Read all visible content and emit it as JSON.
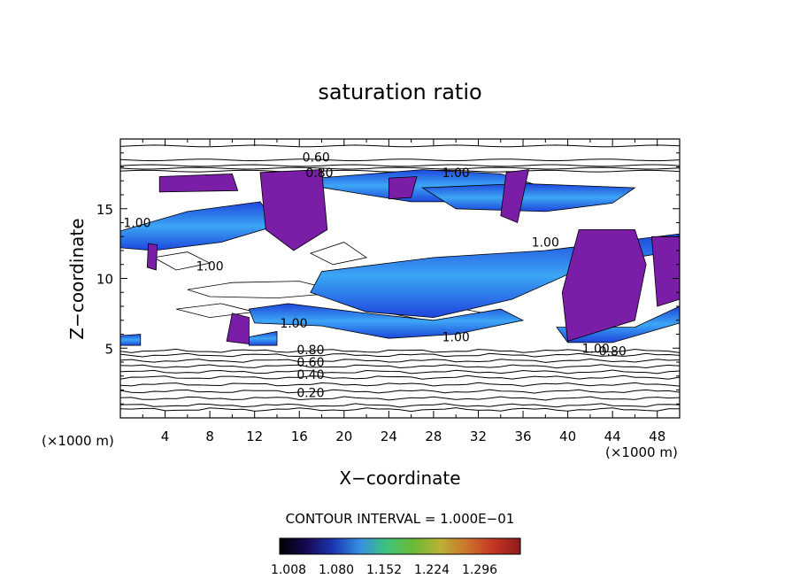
{
  "chart_data": {
    "type": "heatmap",
    "title": "saturation ratio",
    "xlabel": "X−coordinate",
    "ylabel": "Z−coordinate",
    "x_unit": "(×1000 m)",
    "x_unit_right": "(×1000 m)",
    "xlim": [
      0,
      50
    ],
    "ylim": [
      0,
      20
    ],
    "x_ticks": [
      4,
      8,
      12,
      16,
      20,
      24,
      28,
      32,
      36,
      40,
      44,
      48
    ],
    "y_ticks": [
      5,
      10,
      15
    ],
    "contour_interval_text": "CONTOUR INTERVAL = 1.000E−01",
    "colorbar": {
      "tick_labels": [
        "1.008",
        "1.080",
        "1.152",
        "1.224",
        "1.296"
      ],
      "colors": [
        "#000000",
        "#1a0a5c",
        "#1e3cc8",
        "#3ca0ff",
        "#46dc8c",
        "#78d23c",
        "#d2c83c",
        "#e68232",
        "#dc3c28",
        "#a01e1e"
      ]
    },
    "contour_labels": [
      {
        "text": "0.60",
        "x": 17.5,
        "z": 18.7
      },
      {
        "text": "0.80",
        "x": 17.8,
        "z": 17.6
      },
      {
        "text": "1.00",
        "x": 30.0,
        "z": 17.6
      },
      {
        "text": "1.00",
        "x": 1.5,
        "z": 14.0
      },
      {
        "text": "1.00",
        "x": 38.0,
        "z": 12.6
      },
      {
        "text": "1.00",
        "x": 8.0,
        "z": 10.9
      },
      {
        "text": "1.00",
        "x": 15.5,
        "z": 6.8
      },
      {
        "text": "1.00",
        "x": 30.0,
        "z": 5.8
      },
      {
        "text": "1.00",
        "x": 42.5,
        "z": 5.0
      },
      {
        "text": "0.80",
        "x": 17.0,
        "z": 4.9
      },
      {
        "text": "0.60",
        "x": 17.0,
        "z": 4.0
      },
      {
        "text": "0.40",
        "x": 17.0,
        "z": 3.1
      },
      {
        "text": "0.20",
        "x": 17.0,
        "z": 1.8
      },
      {
        "text": "0.80",
        "x": 44.0,
        "z": 4.8
      }
    ],
    "supersaturated_regions_purple": [
      [
        [
          3.5,
          17.3
        ],
        [
          10.0,
          17.5
        ],
        [
          10.5,
          16.3
        ],
        [
          3.5,
          16.2
        ]
      ],
      [
        [
          12.5,
          17.6
        ],
        [
          18.0,
          17.8
        ],
        [
          18.5,
          13.5
        ],
        [
          15.5,
          12.0
        ],
        [
          13.0,
          13.5
        ]
      ],
      [
        [
          24.0,
          17.2
        ],
        [
          26.5,
          17.3
        ],
        [
          26.0,
          15.8
        ],
        [
          24.0,
          15.7
        ]
      ],
      [
        [
          34.5,
          17.6
        ],
        [
          36.5,
          17.8
        ],
        [
          35.5,
          14.0
        ],
        [
          34.0,
          14.5
        ]
      ],
      [
        [
          41.0,
          13.5
        ],
        [
          46.0,
          13.5
        ],
        [
          47.0,
          11.0
        ],
        [
          46.0,
          7.0
        ],
        [
          40.0,
          5.5
        ],
        [
          39.5,
          9.0
        ]
      ],
      [
        [
          47.5,
          13.0
        ],
        [
          50.0,
          13.0
        ],
        [
          50.0,
          8.5
        ],
        [
          48.0,
          8.0
        ]
      ],
      [
        [
          10.0,
          7.5
        ],
        [
          11.5,
          7.2
        ],
        [
          11.5,
          5.3
        ],
        [
          9.5,
          5.5
        ]
      ],
      [
        [
          2.5,
          12.5
        ],
        [
          3.3,
          12.4
        ],
        [
          3.2,
          10.6
        ],
        [
          2.4,
          10.8
        ]
      ]
    ],
    "supersaturated_bands_blue": [
      [
        [
          0,
          13.4
        ],
        [
          6.0,
          14.8
        ],
        [
          12.5,
          15.5
        ],
        [
          14.0,
          13.8
        ],
        [
          9.0,
          12.6
        ],
        [
          3.0,
          12.0
        ],
        [
          0,
          12.2
        ]
      ],
      [
        [
          14.5,
          17.0
        ],
        [
          27.0,
          17.8
        ],
        [
          34.0,
          17.5
        ],
        [
          38.0,
          16.5
        ],
        [
          33.0,
          15.5
        ],
        [
          26.0,
          15.5
        ],
        [
          22.0,
          16.0
        ]
      ],
      [
        [
          18.0,
          10.5
        ],
        [
          28.0,
          11.5
        ],
        [
          38.0,
          12.0
        ],
        [
          50.0,
          13.2
        ],
        [
          50.0,
          12.0
        ],
        [
          42.0,
          11.0
        ],
        [
          35.0,
          8.5
        ],
        [
          28.0,
          7.2
        ],
        [
          22.0,
          7.6
        ],
        [
          17.0,
          9.0
        ]
      ],
      [
        [
          15.0,
          8.2
        ],
        [
          22.0,
          7.5
        ],
        [
          28.0,
          7.0
        ],
        [
          34.0,
          7.8
        ],
        [
          36.0,
          7.0
        ],
        [
          30.0,
          6.0
        ],
        [
          24.0,
          5.7
        ],
        [
          18.0,
          6.6
        ],
        [
          12.0,
          6.8
        ],
        [
          11.5,
          7.8
        ]
      ],
      [
        [
          27.0,
          16.5
        ],
        [
          36.0,
          16.8
        ],
        [
          46.0,
          16.5
        ],
        [
          44.0,
          15.4
        ],
        [
          38.0,
          14.8
        ],
        [
          30.0,
          15.0
        ]
      ],
      [
        [
          0,
          5.9
        ],
        [
          1.8,
          6.0
        ],
        [
          1.8,
          5.2
        ],
        [
          0,
          5.2
        ]
      ],
      [
        [
          11.5,
          5.8
        ],
        [
          14.0,
          6.2
        ],
        [
          14.0,
          5.2
        ],
        [
          11.5,
          5.2
        ]
      ],
      [
        [
          39.0,
          6.5
        ],
        [
          46.0,
          6.5
        ],
        [
          50.0,
          8.0
        ],
        [
          50.0,
          6.8
        ],
        [
          44.0,
          5.4
        ],
        [
          40.0,
          5.4
        ]
      ]
    ],
    "grid": false,
    "legend": "bottom"
  }
}
